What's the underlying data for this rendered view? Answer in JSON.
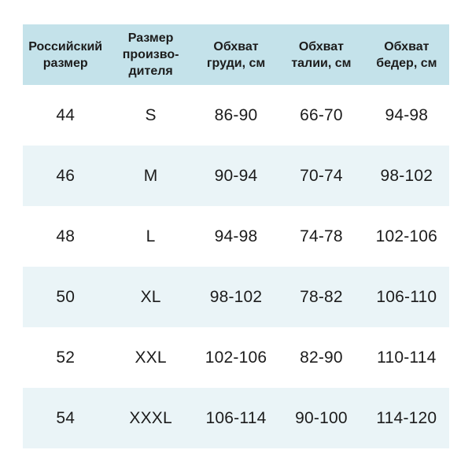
{
  "colors": {
    "page_background": "#ffffff",
    "header_background": "#c4e2ea",
    "alt_row_background": "#eaf4f7",
    "text": "#1c1c1c"
  },
  "chart_data": {
    "type": "table",
    "title": "",
    "columns": [
      "Российский размер",
      "Размер производителя",
      "Обхват груди, см",
      "Обхват талии, см",
      "Обхват бедер, см"
    ],
    "rows": [
      [
        "44",
        "S",
        "86-90",
        "66-70",
        "94-98"
      ],
      [
        "46",
        "M",
        "90-94",
        "70-74",
        "98-102"
      ],
      [
        "48",
        "L",
        "94-98",
        "74-78",
        "102-106"
      ],
      [
        "50",
        "XL",
        "98-102",
        "78-82",
        "106-110"
      ],
      [
        "52",
        "XXL",
        "102-106",
        "82-90",
        "110-114"
      ],
      [
        "54",
        "XXXL",
        "106-114",
        "90-100",
        "114-120"
      ]
    ],
    "layout_hints": {
      "header_fill": "#c4e2ea",
      "zebra_striping": "even data rows tinted #eaf4f7",
      "grid": "off",
      "alignment": "center"
    }
  },
  "header_display": {
    "cells": [
      {
        "lines": [
          "Российский",
          "размер"
        ]
      },
      {
        "lines": [
          "Размер",
          "произво-",
          "дителя"
        ]
      },
      {
        "lines": [
          "Обхват",
          "груди, см"
        ]
      },
      {
        "lines": [
          "Обхват",
          "талии, см"
        ]
      },
      {
        "lines": [
          "Обхват",
          "бедер, см"
        ]
      }
    ]
  }
}
